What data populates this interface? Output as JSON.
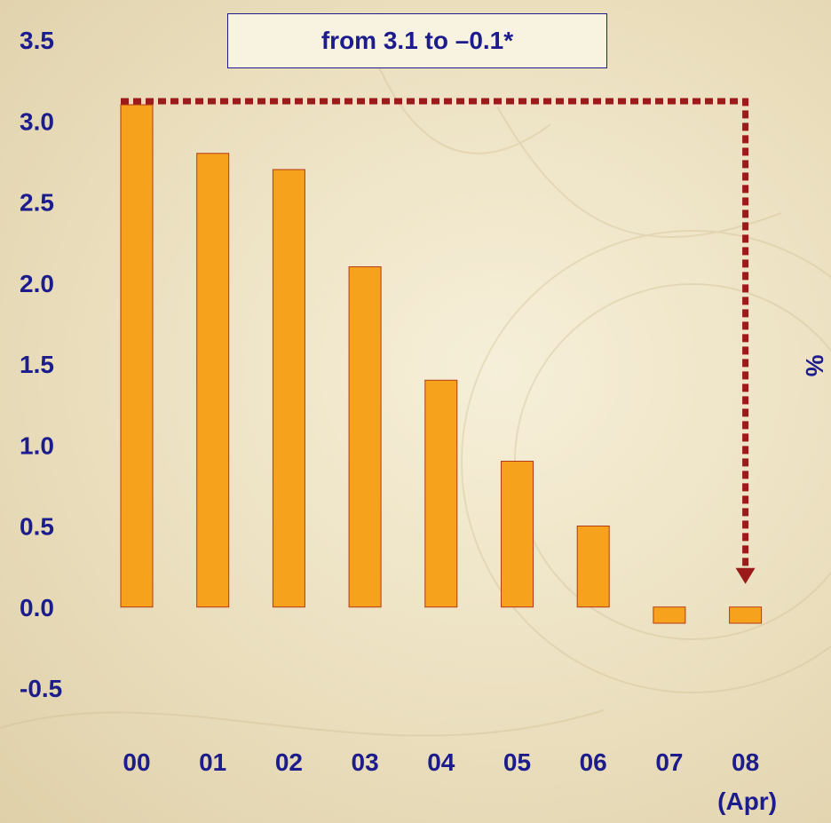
{
  "chart_data": {
    "type": "bar",
    "categories": [
      "00",
      "01",
      "02",
      "03",
      "04",
      "05",
      "06",
      "07",
      "08"
    ],
    "category_sublabels": [
      "",
      "",
      "",
      "",
      "",
      "",
      "",
      "",
      "(Apr)"
    ],
    "values": [
      3.1,
      2.8,
      2.7,
      2.1,
      1.4,
      0.9,
      0.5,
      -0.1,
      -0.1
    ],
    "ylim": [
      -0.5,
      3.5
    ],
    "yticks": [
      "3.5",
      "3.0",
      "2.5",
      "2.0",
      "1.5",
      "1.0",
      "0.5",
      "0.0",
      "-0.5"
    ],
    "ylabel": "%",
    "annotation": "from 3.1 to –0.1*",
    "bar_color": "#f7a21c",
    "bar_edge_color": "#b23a16",
    "arrow_color": "#9b1b1b",
    "tick_color": "#1c1c8c",
    "grid": false
  }
}
